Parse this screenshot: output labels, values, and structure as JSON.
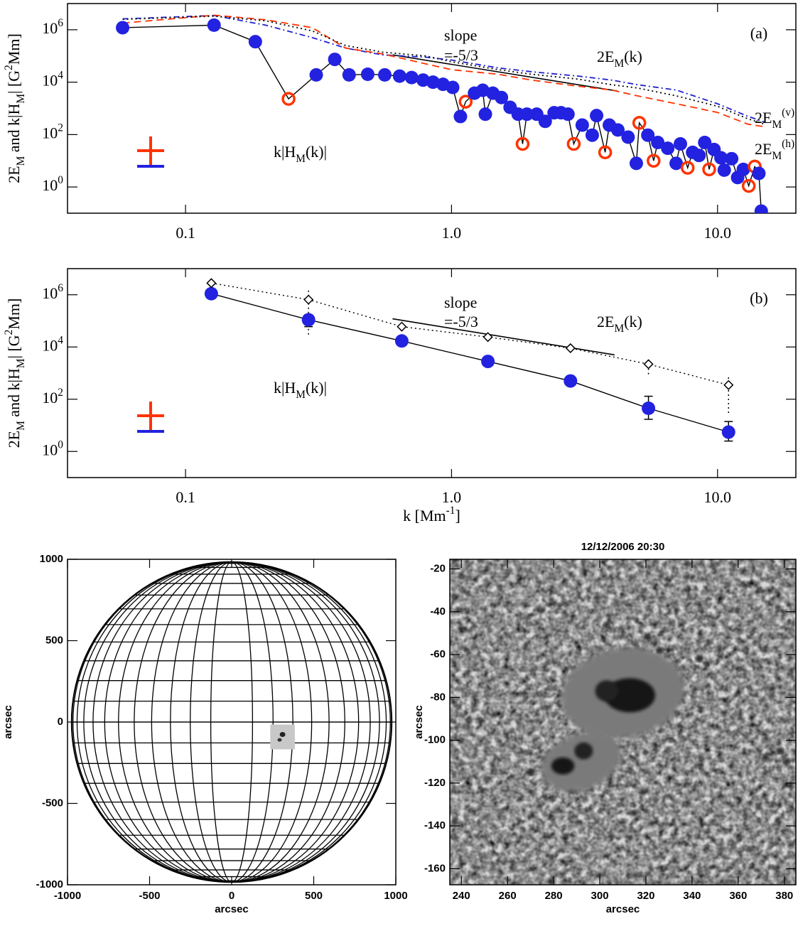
{
  "chart_data": [
    {
      "type": "line",
      "panel_label": "(a)",
      "xscale": "log",
      "yscale": "log",
      "ylabel": "2E_M and k|H_M|  [G^2Mm]",
      "xlim": [
        0.036,
        19.7
      ],
      "ylim": [
        0.1,
        10000000
      ],
      "xticks": [
        0.1,
        {
          "value": 1,
          "label": "1.0"
        },
        {
          "value": 10,
          "label": "10.0"
        }
      ],
      "yticks": [
        {
          "value": 1,
          "label": "10^0"
        },
        {
          "value": 100,
          "label": "10^2"
        },
        {
          "value": 10000,
          "label": "10^4"
        },
        {
          "value": 1000000,
          "label": "10^6"
        }
      ],
      "annotations": [
        "slope",
        "=-5/3",
        "2E_M(k)",
        "k|H_M(k)|"
      ],
      "slope_line": {
        "x": [
          0.6,
          4.2
        ],
        "values": [
          110000,
          4600
        ]
      },
      "series": [
        {
          "color": "#2222e0",
          "open_color": "#ff3300",
          "line_color": "#000000",
          "x": [
            0.058,
            0.128,
            0.183,
            0.244,
            0.31,
            0.364,
            0.412,
            0.484,
            0.561,
            0.638,
            0.708,
            0.782,
            0.852,
            0.929,
            1.01,
            1.08,
            1.13,
            1.22,
            1.31,
            1.34,
            1.43,
            1.54,
            1.66,
            1.78,
            1.85,
            1.92,
            2.09,
            2.25,
            2.43,
            2.58,
            2.74,
            2.88,
            3.1,
            3.38,
            3.51,
            3.78,
            3.92,
            4.22,
            4.61,
            4.95,
            5.08,
            5.47,
            5.75,
            5.96,
            6.5,
            6.99,
            7.25,
            7.72,
            8.06,
            8.52,
            8.95,
            9.3,
            9.7,
            10.3,
            10.6,
            11.3,
            11.9,
            12.5,
            13.1,
            13.8,
            14.3,
            14.6
          ],
          "values": [
            1200000,
            1500000,
            350000,
            2300,
            19000,
            74000,
            19000,
            20000,
            19000,
            17000,
            15000,
            12000,
            10000,
            8300,
            6300,
            490,
            1800,
            3800,
            4900,
            600,
            3800,
            2600,
            1100,
            600,
            44,
            600,
            600,
            320,
            680,
            680,
            600,
            44,
            230,
            95,
            530,
            21,
            230,
            150,
            80,
            8,
            280,
            95,
            10,
            50,
            30,
            8,
            44,
            5.4,
            21,
            16,
            50,
            4.7,
            27,
            13,
            4.4,
            12,
            2.3,
            4.7,
            1.1,
            6,
            3.3,
            0.12
          ],
          "markers": [
            "filled",
            "filled",
            "filled",
            "open",
            "filled",
            "filled",
            "filled",
            "filled",
            "filled",
            "filled",
            "filled",
            "filled",
            "filled",
            "filled",
            "filled",
            "filled",
            "open",
            "filled",
            "filled",
            "filled",
            "filled",
            "filled",
            "filled",
            "filled",
            "open",
            "filled",
            "filled",
            "filled",
            "filled",
            "filled",
            "filled",
            "open",
            "filled",
            "filled",
            "filled",
            "open",
            "filled",
            "filled",
            "filled",
            "filled",
            "open",
            "filled",
            "open",
            "filled",
            "filled",
            "filled",
            "filled",
            "open",
            "filled",
            "filled",
            "filled",
            "open",
            "filled",
            "filled",
            "filled",
            "filled",
            "filled",
            "filled",
            "open",
            "open",
            "filled",
            "filled"
          ]
        },
        {
          "name": "2E_M^(v)",
          "color": "#2020d0",
          "dash": "dashdot",
          "x": [
            0.058,
            0.128,
            0.2,
            0.3,
            0.4,
            0.55,
            0.8,
            1.0,
            1.5,
            2,
            3,
            4,
            5,
            7,
            10,
            13,
            15
          ],
          "values": [
            2600000,
            3500000,
            1500000,
            500000,
            200000,
            110000,
            90000,
            70000,
            35000,
            25000,
            17000,
            12000,
            8000,
            5000,
            1500,
            500,
            300
          ]
        },
        {
          "name": "2E_M^(h)",
          "color": "#ff3300",
          "dash": "dashed",
          "x": [
            0.058,
            0.128,
            0.2,
            0.3,
            0.4,
            0.55,
            0.8,
            1.0,
            1.5,
            2,
            3,
            4,
            5,
            7,
            10,
            13,
            15
          ],
          "values": [
            1800000,
            3600000,
            2400000,
            1200000,
            200000,
            120000,
            50000,
            30000,
            20000,
            12000,
            7000,
            5000,
            3000,
            1500,
            700,
            250,
            200
          ]
        },
        {
          "color": "#000000",
          "dash": "dotted",
          "x": [
            0.058,
            0.128,
            0.2,
            0.3,
            0.4,
            0.55,
            0.8,
            1.0,
            1.5,
            2,
            3,
            4,
            5,
            7,
            10,
            13,
            15
          ],
          "values": [
            2500000,
            3300000,
            2200000,
            900000,
            250000,
            140000,
            100000,
            60000,
            30000,
            20000,
            13000,
            8000,
            6000,
            3000,
            1200,
            400,
            250
          ]
        }
      ]
    },
    {
      "type": "line",
      "panel_label": "(b)",
      "xscale": "log",
      "yscale": "log",
      "ylabel": "2E_M and k|H_M|  [G^2Mm]",
      "xlabel": "k [Mm^-1]",
      "xlim": [
        0.036,
        19.7
      ],
      "ylim": [
        0.1,
        10000000
      ],
      "xticks": [
        0.1,
        {
          "value": 1,
          "label": "1.0"
        },
        {
          "value": 10,
          "label": "10.0"
        }
      ],
      "yticks": [
        {
          "value": 1,
          "label": "10^0"
        },
        {
          "value": 100,
          "label": "10^2"
        },
        {
          "value": 10000,
          "label": "10^4"
        },
        {
          "value": 1000000,
          "label": "10^6"
        }
      ],
      "annotations": [
        "slope",
        "=-5/3",
        "2E_M(k)",
        "k|H_M(k)|"
      ],
      "slope_line": {
        "x": [
          0.6,
          4.1
        ],
        "values": [
          120000,
          5000
        ]
      },
      "series": [
        {
          "color": "#2222e0",
          "line_color": "#000000",
          "marker": "circle",
          "dash": "solid",
          "x": [
            0.125,
            0.29,
            0.65,
            1.37,
            2.8,
            5.5,
            11
          ],
          "values": [
            1100000,
            110000,
            17000,
            2800,
            500,
            45,
            5.5
          ],
          "err_minus": [
            null,
            50000,
            null,
            null,
            null,
            28,
            3
          ],
          "err_plus": [
            null,
            60000,
            null,
            null,
            null,
            85,
            8.5
          ]
        },
        {
          "color": "#000000",
          "line_color": "#000000",
          "marker": "diamond",
          "dash": "dotted",
          "x": [
            0.125,
            0.29,
            0.65,
            1.37,
            2.8,
            5.5,
            11
          ],
          "values": [
            2800000,
            650000,
            60000,
            24000,
            9000,
            2200,
            350
          ],
          "err_minus": [
            null,
            620000,
            null,
            null,
            null,
            1300,
            320
          ],
          "err_plus": [
            null,
            850000,
            null,
            null,
            null,
            800,
            350
          ]
        }
      ]
    },
    {
      "type": "globe",
      "xlabel": "arcsec",
      "ylabel": "arcsec",
      "xlim": [
        -1000,
        1000
      ],
      "ylim": [
        -1000,
        1000
      ],
      "xticks": [
        -1000,
        -500,
        0,
        500,
        1000
      ],
      "yticks": [
        -1000,
        -500,
        0,
        500,
        1000
      ],
      "radius": 975,
      "grid_step_deg": 7.5
    },
    {
      "type": "image",
      "title": "12/12/2006 20:30",
      "xlabel": "arcsec",
      "ylabel": "arcsec",
      "xlim": [
        235,
        385
      ],
      "ylim": [
        -167.5,
        -15.5
      ],
      "xticks": [
        240,
        260,
        280,
        300,
        320,
        340,
        360,
        380
      ],
      "yticks": [
        -160,
        -140,
        -120,
        -100,
        -80,
        -60,
        -40,
        -20
      ]
    }
  ]
}
